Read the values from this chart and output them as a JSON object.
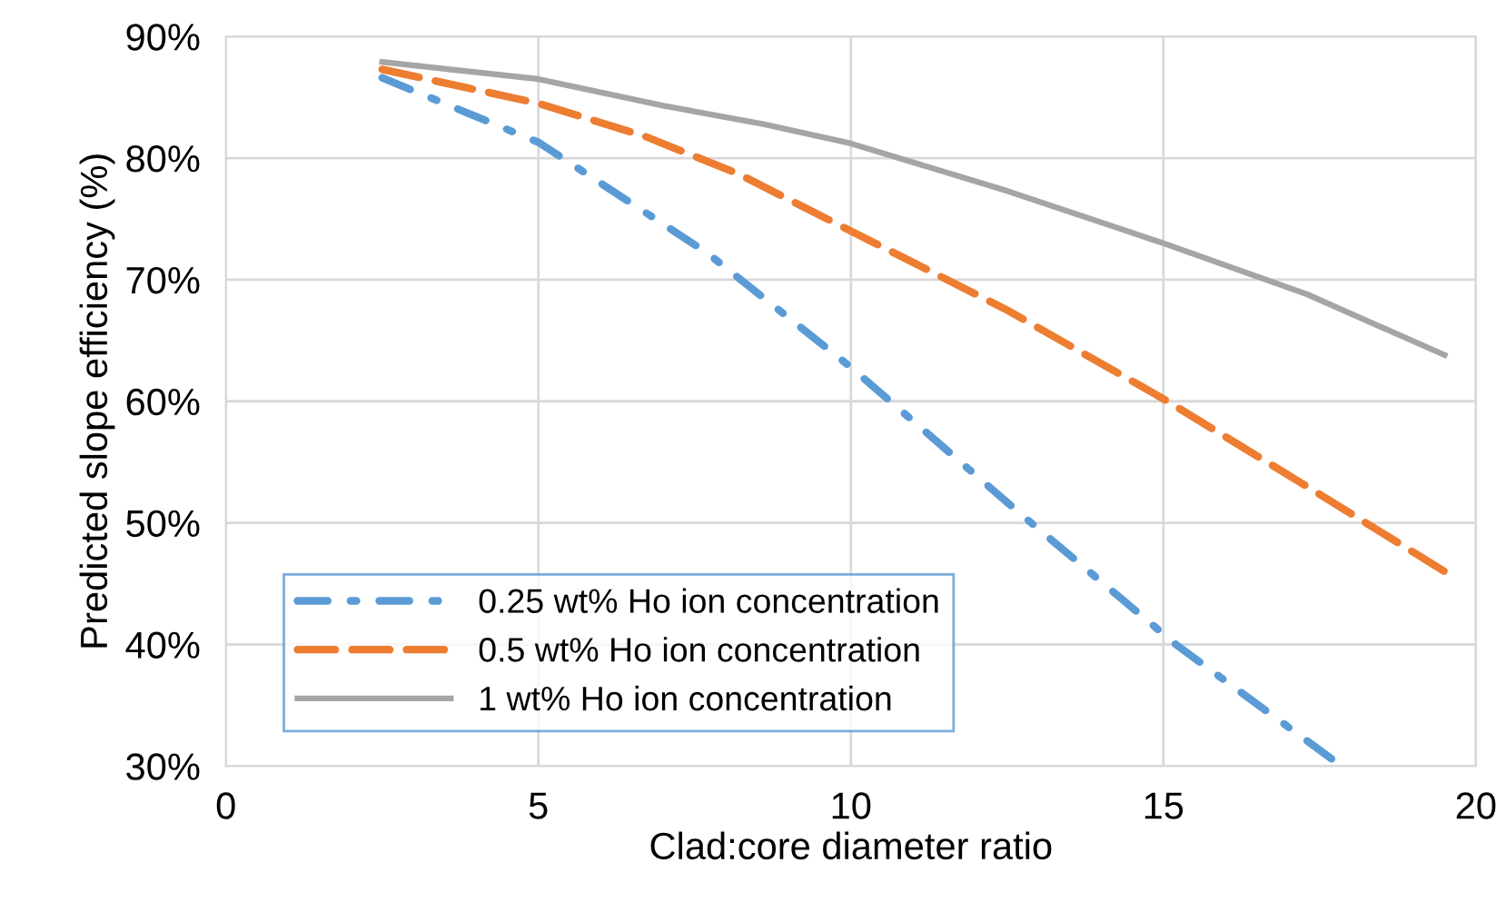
{
  "chart_data": {
    "type": "line",
    "xlabel": "Clad:core diameter ratio",
    "ylabel": "Predicted slope efficiency (%)",
    "xlim": [
      0,
      20
    ],
    "xticks": [
      0,
      5,
      10,
      15,
      20
    ],
    "ylim": [
      30,
      90
    ],
    "yticks": [
      {
        "value": 30,
        "label": "30%"
      },
      {
        "value": 40,
        "label": "40%"
      },
      {
        "value": 50,
        "label": "50%"
      },
      {
        "value": 60,
        "label": "60%"
      },
      {
        "value": 70,
        "label": "70%"
      },
      {
        "value": 80,
        "label": "80%"
      },
      {
        "value": 90,
        "label": "90%"
      }
    ],
    "grid": true,
    "legend": "bottom left",
    "marker": "none",
    "series": [
      {
        "name": "0.25 wt% Ho ion concentration",
        "color": "#5b9bd5",
        "line_style": "dashdot",
        "x": [
          2.5,
          5,
          7.7,
          10,
          12.7,
          15.2,
          17.85
        ],
        "values": [
          86.6,
          81.3,
          72.2,
          62.8,
          50.8,
          40.0,
          30.0
        ]
      },
      {
        "name": "0.5 wt% Ho ion concentration",
        "color": "#ed7d31",
        "line_style": "dashed",
        "x": [
          2.5,
          5,
          6.7,
          8.2,
          10,
          12.5,
          15,
          17.2,
          19.5
        ],
        "values": [
          87.3,
          84.5,
          81.8,
          78.7,
          74.0,
          67.5,
          60.2,
          53.3,
          46.0
        ]
      },
      {
        "name": "1 wt% Ho ion concentration",
        "color": "#a5a5a5",
        "line_style": "solid",
        "x": [
          2.5,
          5,
          7.0,
          8.6,
          10,
          12.5,
          15,
          17.3,
          19.5
        ],
        "values": [
          87.9,
          86.5,
          84.3,
          82.8,
          81.2,
          77.3,
          73.0,
          68.8,
          63.8
        ]
      }
    ]
  }
}
